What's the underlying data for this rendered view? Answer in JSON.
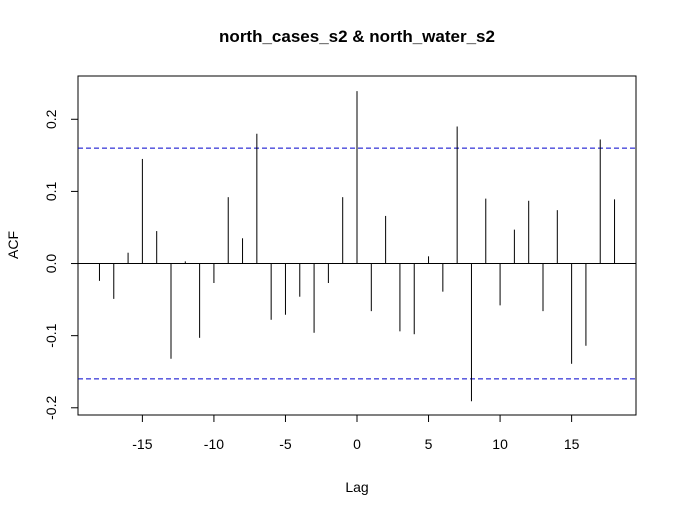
{
  "chart_data": {
    "type": "bar",
    "title": "north_cases_s2 & north_water_s2",
    "xlabel": "Lag",
    "ylabel": "ACF",
    "xlim": [
      -19.5,
      19.5
    ],
    "ylim": [
      -0.21,
      0.26
    ],
    "x_ticks": [
      -15,
      -10,
      -5,
      0,
      5,
      10,
      15
    ],
    "y_ticks": [
      -0.2,
      -0.1,
      0.0,
      0.1,
      0.2
    ],
    "x_tick_labels": [
      "-15",
      "-10",
      "-5",
      "0",
      "5",
      "10",
      "15"
    ],
    "y_tick_labels": [
      "-0.2",
      "-0.1",
      "0.0",
      "0.1",
      "0.2"
    ],
    "confidence_limit": 0.16,
    "confidence_color": "#0000CC",
    "line_color": "#000000",
    "lags": [
      -18,
      -17,
      -16,
      -15,
      -14,
      -13,
      -12,
      -11,
      -10,
      -9,
      -8,
      -7,
      -6,
      -5,
      -4,
      -3,
      -2,
      -1,
      0,
      1,
      2,
      3,
      4,
      5,
      6,
      7,
      8,
      9,
      10,
      11,
      12,
      13,
      14,
      15,
      16,
      17,
      18
    ],
    "values": [
      -0.024,
      -0.049,
      0.015,
      0.145,
      0.045,
      -0.132,
      0.003,
      -0.103,
      -0.027,
      0.092,
      0.035,
      0.18,
      -0.078,
      -0.071,
      -0.046,
      -0.096,
      -0.027,
      0.092,
      0.239,
      -0.066,
      0.066,
      -0.094,
      -0.098,
      0.01,
      -0.039,
      0.19,
      -0.191,
      0.09,
      -0.058,
      0.047,
      0.087,
      -0.066,
      0.074,
      -0.139,
      -0.114,
      0.172,
      0.089
    ]
  }
}
